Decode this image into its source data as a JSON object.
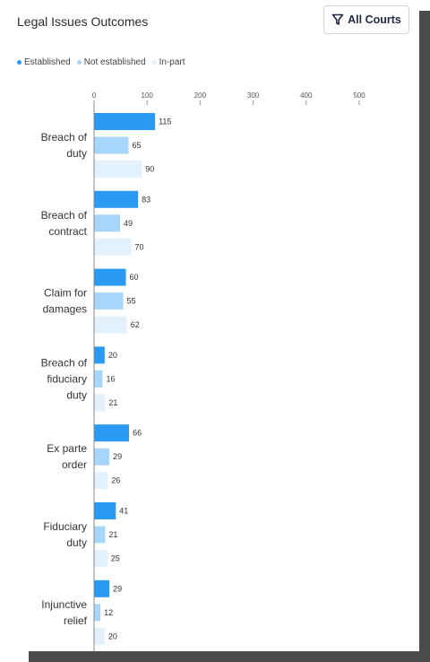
{
  "header": {
    "title": "Legal Issues Outcomes",
    "filter_label": "All Courts"
  },
  "colors": {
    "established": "#2b9af3",
    "not_established": "#a8d6fb",
    "in_part": "#e3f1fd"
  },
  "chart_data": {
    "type": "bar",
    "orientation": "horizontal",
    "categories": [
      [
        "Breach of",
        "duty"
      ],
      [
        "Breach of",
        "contract"
      ],
      [
        "Claim for",
        "damages"
      ],
      [
        "Breach of",
        "fiduciary",
        "duty"
      ],
      [
        "Ex parte",
        "order"
      ],
      [
        "Fiduciary",
        "duty"
      ],
      [
        "Injunctive",
        "relief"
      ]
    ],
    "series": [
      {
        "name": "Established",
        "values": [
          115,
          83,
          60,
          20,
          66,
          41,
          29
        ]
      },
      {
        "name": "Not established",
        "values": [
          65,
          49,
          55,
          16,
          29,
          21,
          12
        ]
      },
      {
        "name": "In-part",
        "values": [
          90,
          70,
          62,
          21,
          26,
          25,
          20
        ]
      }
    ],
    "xticks": [
      "0",
      "100",
      "200",
      "300",
      "400",
      "500"
    ],
    "xlim": [
      0,
      500
    ],
    "legend_position": "top-left",
    "grid": false
  }
}
